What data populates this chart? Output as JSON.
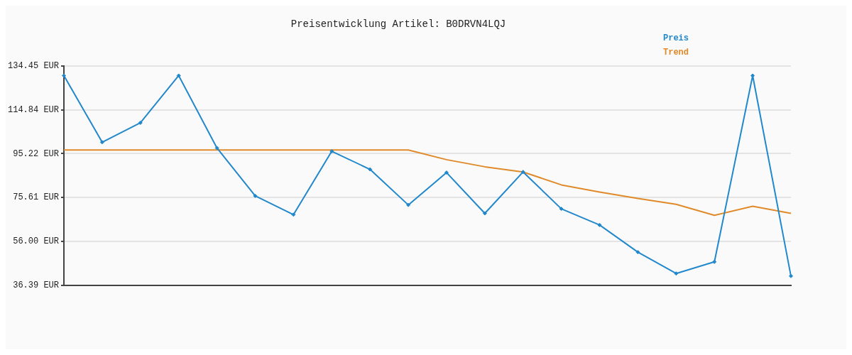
{
  "chart_data": {
    "type": "line",
    "title": "Preisentwicklung Artikel: B0DRVN4LQJ",
    "categories": [
      null,
      null,
      null,
      null,
      null,
      null,
      null,
      null,
      null,
      null,
      null,
      null,
      null,
      null,
      null,
      null,
      null,
      null,
      null,
      null
    ],
    "series": [
      {
        "name": "Preis",
        "color": "#2288cc",
        "marker": "diamond",
        "values": [
          130.11,
          100.32,
          109.0,
          130.11,
          97.72,
          76.31,
          67.92,
          96.27,
          88.17,
          72.26,
          86.72,
          68.5,
          87.01,
          70.52,
          63.29,
          51.14,
          41.6,
          46.8,
          130.11,
          40.44
        ]
      },
      {
        "name": "Trend",
        "color": "#e08a2a",
        "marker": "none",
        "values": [
          96.85,
          96.85,
          96.85,
          96.85,
          96.85,
          96.85,
          96.85,
          96.85,
          96.85,
          96.85,
          92.51,
          89.33,
          87.01,
          81.23,
          78.04,
          75.15,
          72.55,
          67.63,
          71.68,
          68.5
        ]
      }
    ],
    "ylim": [
      36.39,
      134.45
    ],
    "yticks": [
      {
        "value": 36.39,
        "label": "36.39 EUR"
      },
      {
        "value": 56.0,
        "label": "56.00 EUR"
      },
      {
        "value": 75.61,
        "label": "75.61 EUR"
      },
      {
        "value": 95.22,
        "label": "95.22 EUR"
      },
      {
        "value": 114.84,
        "label": "114.84 EUR"
      },
      {
        "value": 134.45,
        "label": "134.45 EUR"
      }
    ],
    "grid": "y",
    "legend": "top right"
  }
}
